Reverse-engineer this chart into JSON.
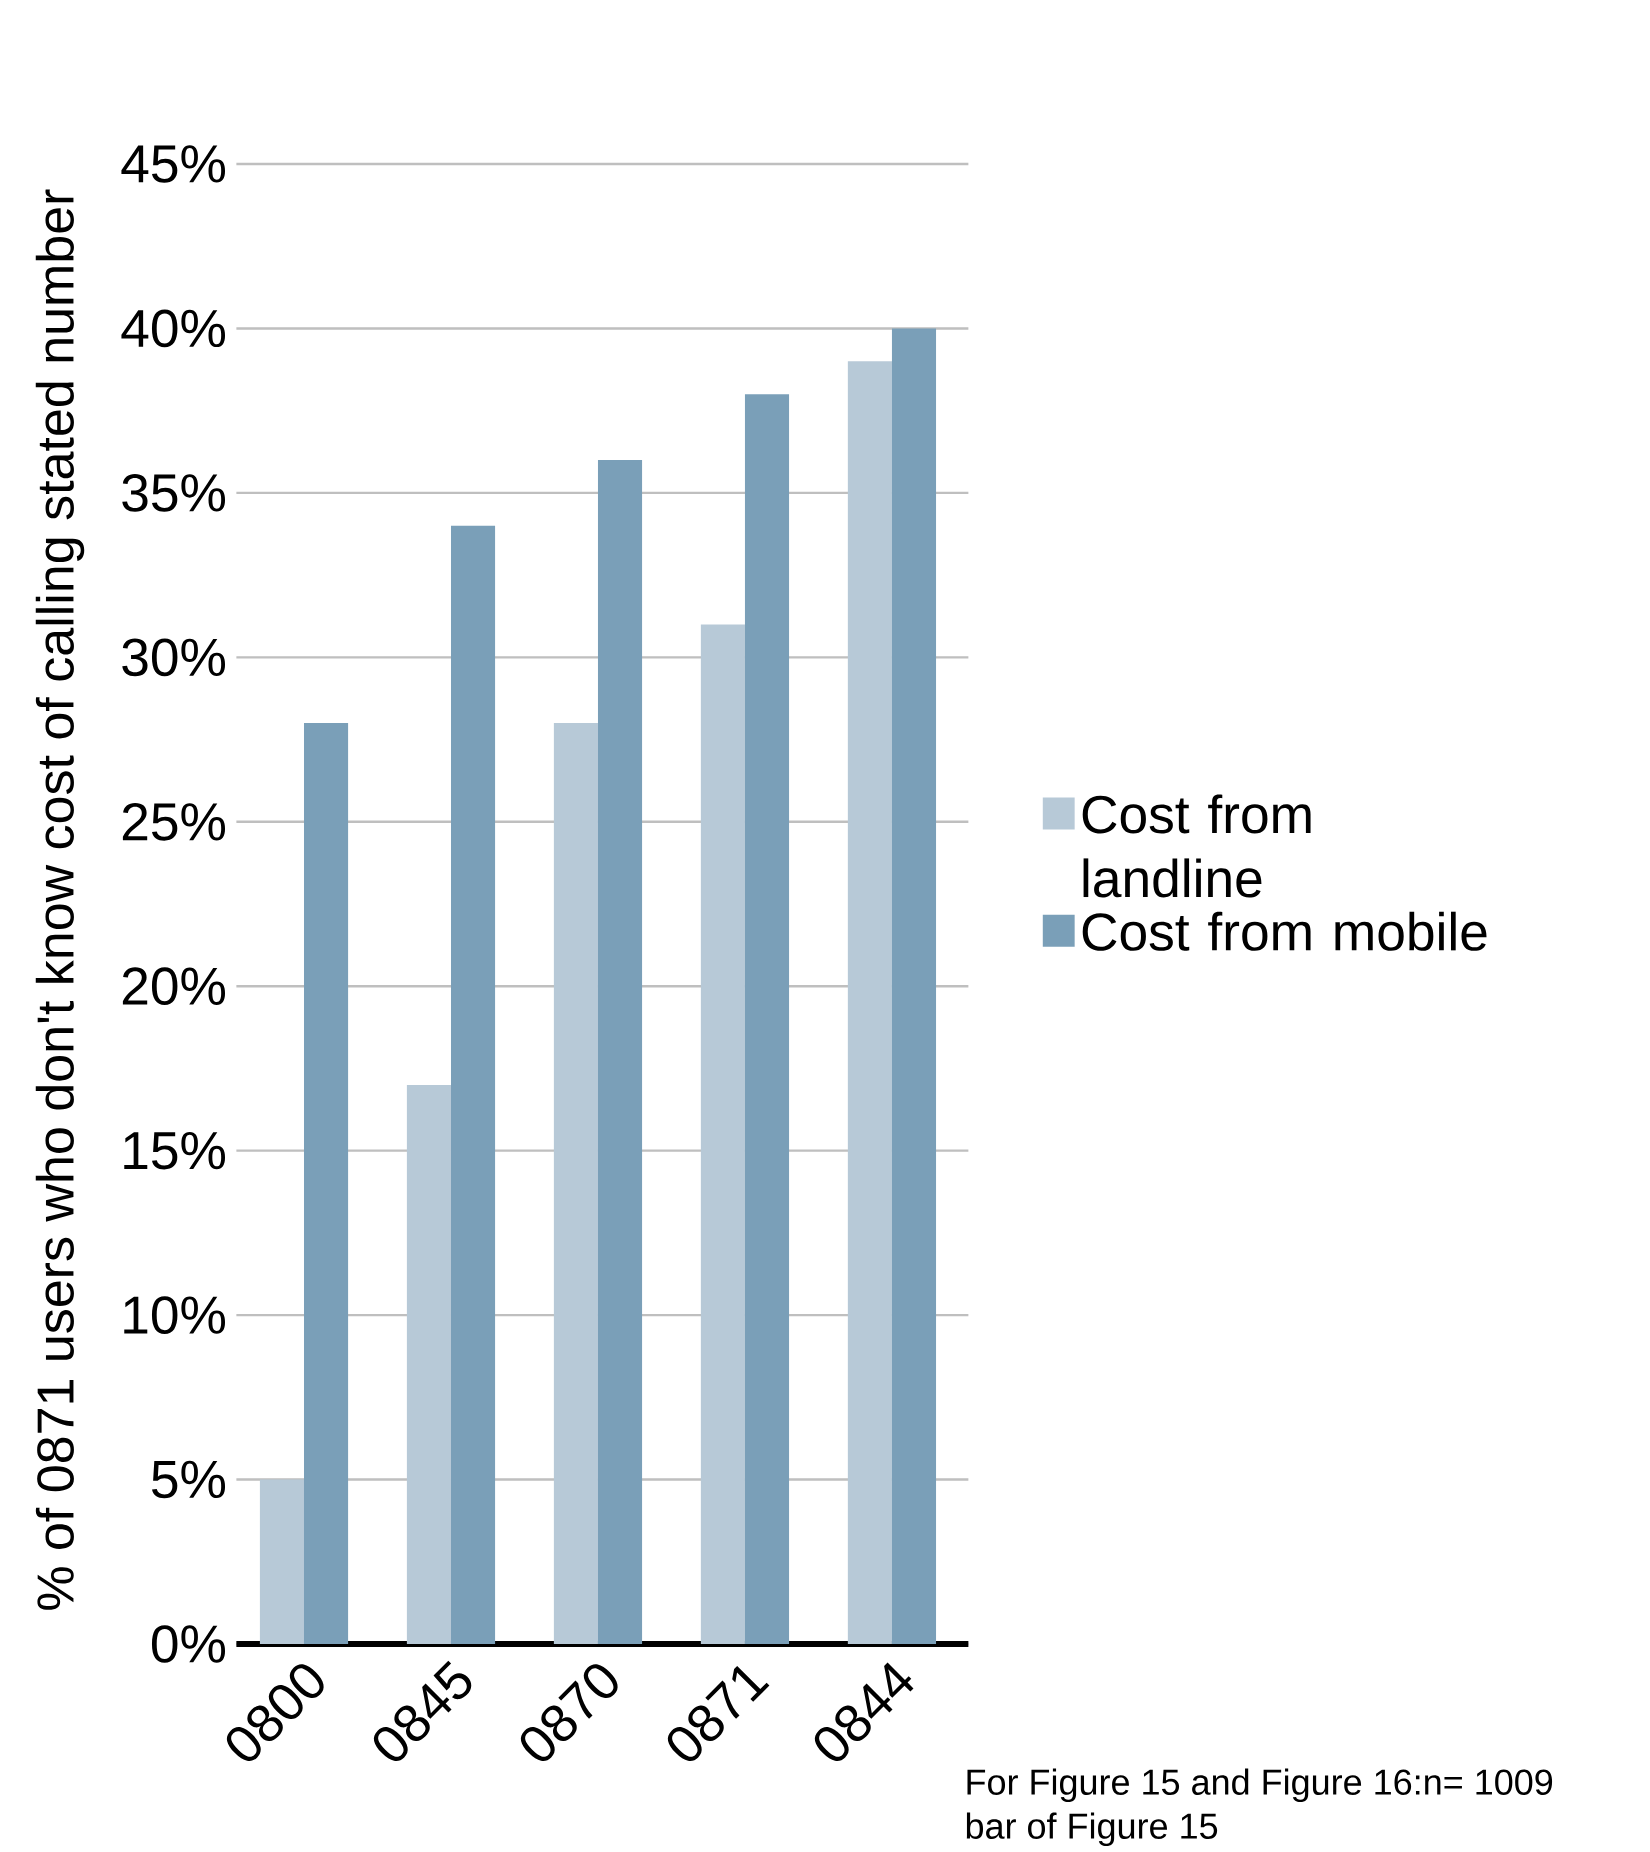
{
  "chart_data": {
    "type": "bar",
    "ylabel": "% of 0871 users who don't know cost of calling stated number",
    "categories": [
      "0800",
      "0845",
      "0870",
      "0871",
      "0844"
    ],
    "series": [
      {
        "name": "Cost from landline",
        "color": "#b7c9d7",
        "values": [
          5,
          17,
          28,
          31,
          39
        ]
      },
      {
        "name": "Cost from mobile",
        "color": "#7a9fb8",
        "values": [
          28,
          34,
          36,
          38,
          40
        ]
      }
    ],
    "ylim": [
      0,
      45
    ],
    "yticks": [
      {
        "value": 0,
        "label": "0%"
      },
      {
        "value": 5,
        "label": "5%"
      },
      {
        "value": 10,
        "label": "10%"
      },
      {
        "value": 15,
        "label": "15%"
      },
      {
        "value": 20,
        "label": "20%"
      },
      {
        "value": 25,
        "label": "25%"
      },
      {
        "value": 30,
        "label": "30%"
      },
      {
        "value": 35,
        "label": "35%"
      },
      {
        "value": 40,
        "label": "40%"
      },
      {
        "value": 45,
        "label": "45%"
      }
    ],
    "grid": "y",
    "legend": "right",
    "annotations": [
      "For Figure 15 and Figure 16:n= 1009",
      "bar of Figure 15"
    ]
  }
}
